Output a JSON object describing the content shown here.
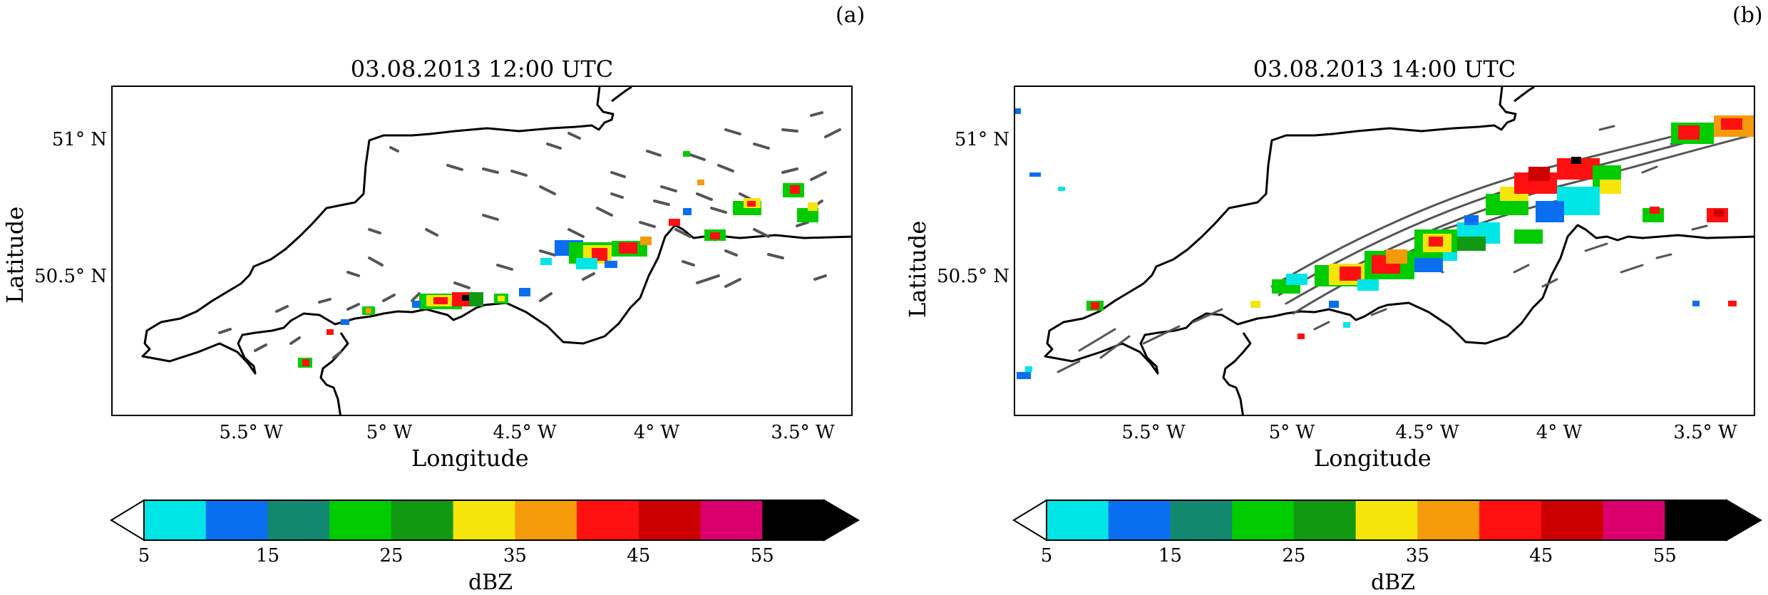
{
  "figure": {
    "panels": [
      {
        "id": "a",
        "label": "(a)",
        "title": "03.08.2013 12:00 UTC"
      },
      {
        "id": "b",
        "label": "(b)",
        "title": "03.08.2013 14:00 UTC"
      }
    ],
    "xlabel": "Longitude",
    "ylabel": "Latitude",
    "lat_ticks": [
      "51° N",
      "50.5° N"
    ],
    "lon_ticks": [
      "5.5° W",
      "5° W",
      "4.5° W",
      "4° W",
      "3.5° W"
    ],
    "colorbar": {
      "label": "dBZ",
      "tick_labels": [
        "5",
        "15",
        "25",
        "35",
        "45",
        "55"
      ],
      "bounds": [
        5,
        10,
        15,
        20,
        25,
        30,
        35,
        40,
        45,
        50,
        55,
        60
      ],
      "extend": "both",
      "under_color": "#ffffff",
      "colors": [
        "#00e6e6",
        "#0a6ef0",
        "#12896f",
        "#00cc00",
        "#119911",
        "#f5e50a",
        "#f59a0a",
        "#ff1010",
        "#cc0000",
        "#d9006e",
        "#000000"
      ]
    },
    "contour_color": "#555555",
    "coastline_color": "#000000"
  }
}
